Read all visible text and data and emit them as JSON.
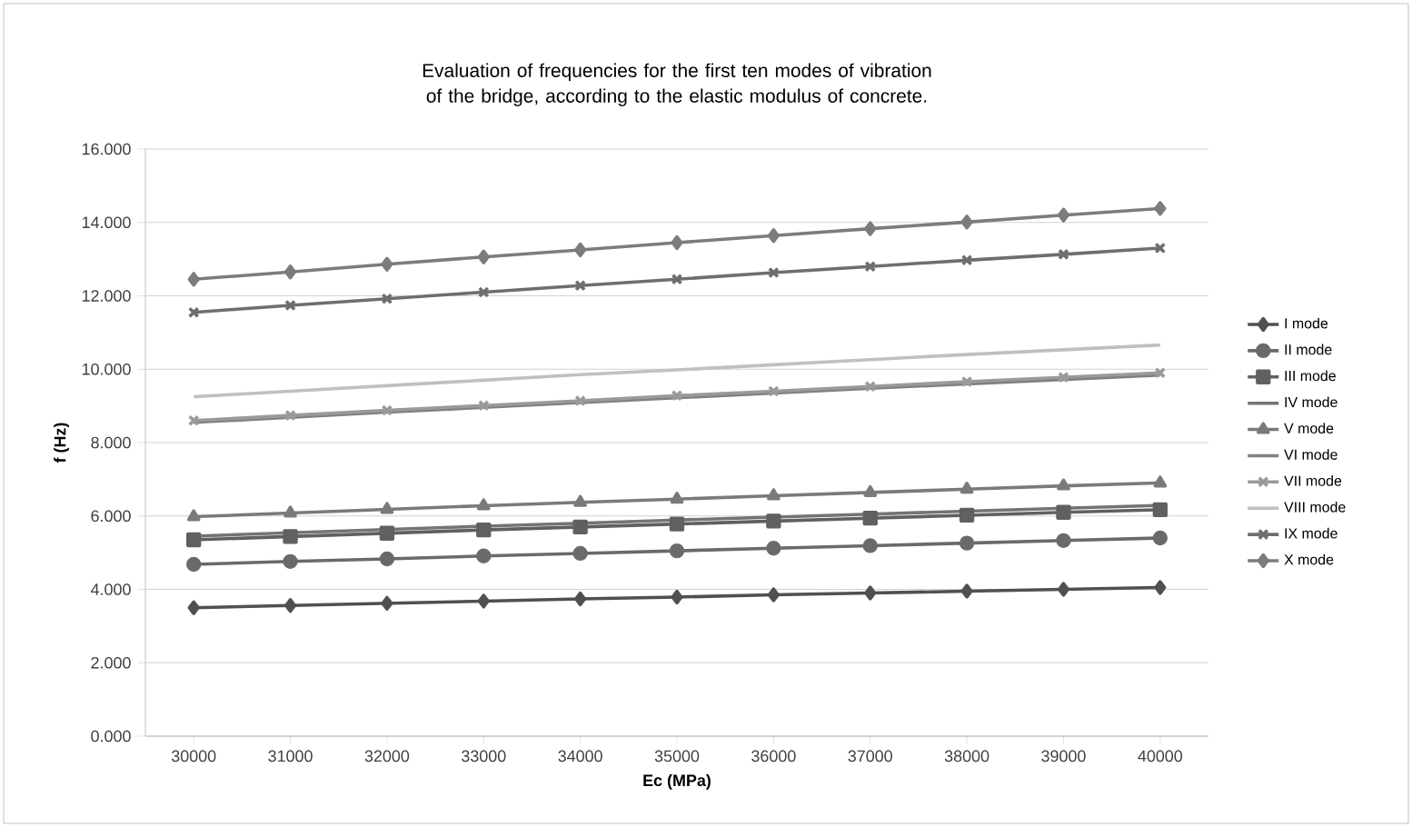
{
  "chart_data": {
    "type": "line",
    "title": "Evaluation of frequencies  for the first ten modes of vibration of the bridge, according to the elastic modulus of concrete.",
    "xlabel": "Ec (MPa)",
    "ylabel": "f (Hz)",
    "categories": [
      "30000",
      "31000",
      "32000",
      "33000",
      "34000",
      "35000",
      "36000",
      "37000",
      "38000",
      "39000",
      "40000"
    ],
    "ylim": [
      0,
      16
    ],
    "yticks": [
      {
        "value": 0,
        "label": "0.000"
      },
      {
        "value": 2,
        "label": "2.000"
      },
      {
        "value": 4,
        "label": "4.000"
      },
      {
        "value": 6,
        "label": "6.000"
      },
      {
        "value": 8,
        "label": "8.000"
      },
      {
        "value": 10,
        "label": "10.000"
      },
      {
        "value": 12,
        "label": "12.000"
      },
      {
        "value": 14,
        "label": "14.000"
      },
      {
        "value": 16,
        "label": "16.000"
      }
    ],
    "grid": "y",
    "legend": "right",
    "series": [
      {
        "name": "I mode",
        "color": "#505050",
        "marker": "diamond",
        "values": [
          3.5,
          3.56,
          3.62,
          3.68,
          3.74,
          3.79,
          3.85,
          3.9,
          3.95,
          4.0,
          4.05
        ]
      },
      {
        "name": "II mode",
        "color": "#6a6a6a",
        "marker": "circle",
        "values": [
          4.68,
          4.76,
          4.83,
          4.91,
          4.98,
          5.05,
          5.12,
          5.19,
          5.26,
          5.33,
          5.4
        ]
      },
      {
        "name": "III mode",
        "color": "#606060",
        "marker": "square",
        "values": [
          5.35,
          5.44,
          5.53,
          5.62,
          5.7,
          5.78,
          5.86,
          5.94,
          6.02,
          6.1,
          6.17
        ]
      },
      {
        "name": "IV mode",
        "color": "#747474",
        "marker": "none",
        "values": [
          5.45,
          5.54,
          5.63,
          5.72,
          5.8,
          5.89,
          5.97,
          6.05,
          6.13,
          6.21,
          6.29
        ]
      },
      {
        "name": "V mode",
        "color": "#7a7a7a",
        "marker": "triangle",
        "values": [
          5.98,
          6.08,
          6.18,
          6.28,
          6.37,
          6.46,
          6.55,
          6.64,
          6.73,
          6.82,
          6.9
        ]
      },
      {
        "name": "VI mode",
        "color": "#808080",
        "marker": "none",
        "values": [
          8.55,
          8.69,
          8.83,
          8.96,
          9.09,
          9.22,
          9.35,
          9.48,
          9.6,
          9.72,
          9.84
        ]
      },
      {
        "name": "VII mode",
        "color": "#9a9a9a",
        "marker": "cross",
        "values": [
          8.6,
          8.74,
          8.88,
          9.01,
          9.14,
          9.28,
          9.4,
          9.53,
          9.66,
          9.78,
          9.9
        ]
      },
      {
        "name": "VIII mode",
        "color": "#c0c0c0",
        "marker": "none",
        "values": [
          9.25,
          9.4,
          9.55,
          9.7,
          9.85,
          9.98,
          10.12,
          10.26,
          10.4,
          10.53,
          10.66
        ]
      },
      {
        "name": "IX mode",
        "color": "#6e6e6e",
        "marker": "cross",
        "values": [
          11.55,
          11.74,
          11.92,
          12.1,
          12.28,
          12.45,
          12.63,
          12.8,
          12.97,
          13.13,
          13.3
        ]
      },
      {
        "name": "X mode",
        "color": "#7c7c7c",
        "marker": "diamond",
        "values": [
          12.45,
          12.65,
          12.86,
          13.06,
          13.25,
          13.45,
          13.64,
          13.83,
          14.01,
          14.2,
          14.38
        ]
      }
    ]
  }
}
